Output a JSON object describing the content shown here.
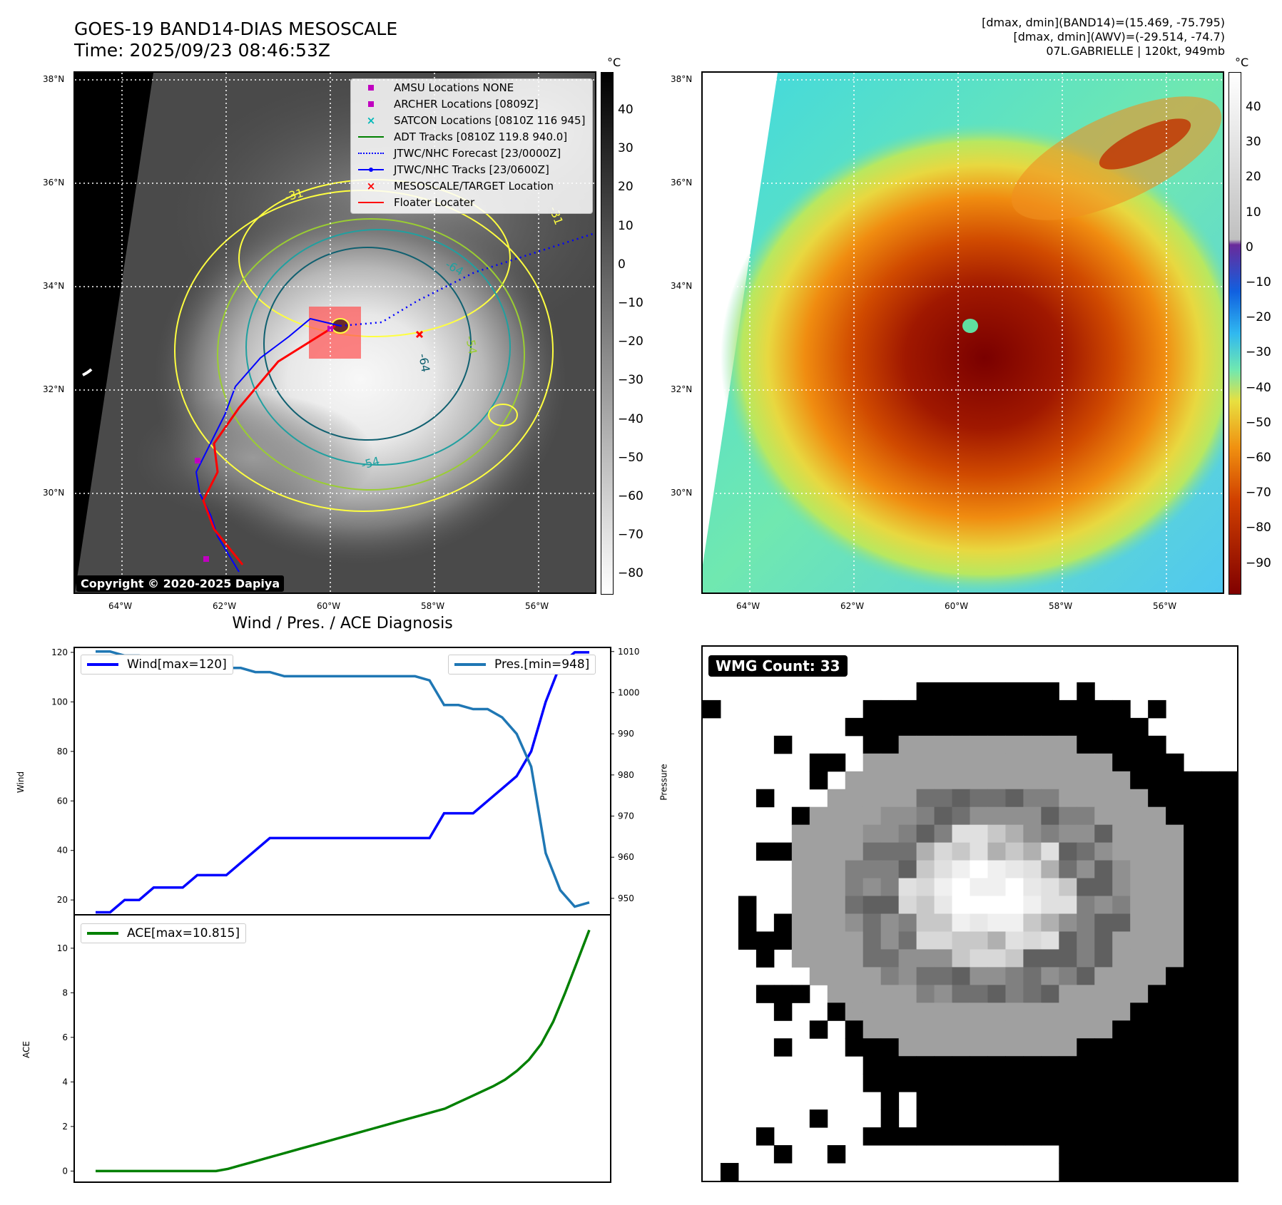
{
  "header": {
    "title_line1": "GOES-19 BAND14-DIAS MESOSCALE",
    "title_line2": "Time: 2025/09/23 08:46:53Z",
    "stats_line1": "[dmax, dmin](BAND14)=(15.469, -75.795)",
    "stats_line2": "[dmax, dmin](AWV)=(-29.514, -74.7)",
    "stats_line3": "07L.GABRIELLE | 120kt, 949mb"
  },
  "map_left": {
    "lat_labels": [
      "38°N",
      "36°N",
      "34°N",
      "32°N",
      "30°N"
    ],
    "lon_labels": [
      "64°W",
      "62°W",
      "60°W",
      "58°W",
      "56°W"
    ],
    "colorbar_unit": "°C",
    "colorbar_ticks": [
      "40",
      "30",
      "20",
      "10",
      "0",
      "−10",
      "−20",
      "−30",
      "−40",
      "−50",
      "−60",
      "−70",
      "−80"
    ],
    "contour_labels": [
      "-31",
      "-64",
      "-54",
      "-64",
      "-31",
      "-54"
    ],
    "copyright": "Copyright © 2020-2025 Dapiya",
    "legend": [
      {
        "label": "AMSU Locations NONE",
        "color": "#c000c0",
        "marker": "square"
      },
      {
        "label": "ARCHER Locations [0809Z]",
        "color": "#c000c0",
        "marker": "square"
      },
      {
        "label": "SATCON Locations [0810Z 116 945]",
        "color": "#00b8b8",
        "marker": "x"
      },
      {
        "label": "ADT Tracks [0810Z 119.8 940.0]",
        "color": "#008000",
        "marker": "line"
      },
      {
        "label": "JTWC/NHC Forecast [23/0000Z]",
        "color": "#0000ff",
        "marker": "dotted"
      },
      {
        "label": "JTWC/NHC Tracks [23/0600Z]",
        "color": "#0000ff",
        "marker": "line-dot"
      },
      {
        "label": "MESOSCALE/TARGET Location",
        "color": "#ff0000",
        "marker": "x"
      },
      {
        "label": "Floater Locater",
        "color": "#ff0000",
        "marker": "line"
      }
    ]
  },
  "map_right": {
    "lat_labels": [
      "38°N",
      "36°N",
      "34°N",
      "32°N",
      "30°N"
    ],
    "lon_labels": [
      "64°W",
      "62°W",
      "60°W",
      "58°W",
      "56°W"
    ],
    "colorbar_unit": "°C",
    "colorbar_ticks": [
      "40",
      "30",
      "20",
      "10",
      "0",
      "−10",
      "−20",
      "−30",
      "−40",
      "−50",
      "−60",
      "−70",
      "−80",
      "−90"
    ]
  },
  "wmg": {
    "badge": "WMG Count: 33"
  },
  "chart_data": [
    {
      "type": "line",
      "title": "Wind / Pres. / ACE Diagnosis",
      "ylabel": "Wind",
      "ylabel_right": "Pressure",
      "ylim": [
        14,
        122
      ],
      "ylim_right": [
        946,
        1011
      ],
      "yticks": [
        20,
        40,
        60,
        80,
        100,
        120
      ],
      "yticks_right": [
        950,
        960,
        970,
        980,
        990,
        1000,
        1010
      ],
      "series": [
        {
          "name": "Wind[max=120]",
          "axis": "left",
          "color": "#0000ff",
          "values": [
            15,
            15,
            20,
            20,
            25,
            25,
            25,
            30,
            30,
            30,
            35,
            40,
            45,
            45,
            45,
            45,
            45,
            45,
            45,
            45,
            45,
            45,
            45,
            45,
            55,
            55,
            55,
            60,
            65,
            70,
            80,
            100,
            115,
            120,
            120
          ]
        },
        {
          "name": "Pres.[min=948]",
          "axis": "right",
          "color": "#1f77b4",
          "values": [
            1010,
            1010,
            1009,
            1009,
            1008,
            1008,
            1007,
            1007,
            1006,
            1006,
            1006,
            1005,
            1005,
            1004,
            1004,
            1004,
            1004,
            1004,
            1004,
            1004,
            1004,
            1004,
            1004,
            1003,
            997,
            997,
            996,
            996,
            994,
            990,
            982,
            961,
            952,
            948,
            949
          ]
        }
      ]
    },
    {
      "type": "line",
      "ylabel": "ACE",
      "ylim": [
        -0.5,
        11.5
      ],
      "yticks": [
        0,
        2,
        4,
        6,
        8,
        10
      ],
      "series": [
        {
          "name": "ACE[max=10.815]",
          "color": "#008000",
          "values": [
            0,
            0,
            0,
            0,
            0,
            0,
            0,
            0,
            0,
            0,
            0,
            0.1,
            0.25,
            0.4,
            0.55,
            0.7,
            0.85,
            1.0,
            1.15,
            1.3,
            1.45,
            1.6,
            1.75,
            1.9,
            2.05,
            2.2,
            2.35,
            2.5,
            2.65,
            2.8,
            3.05,
            3.3,
            3.55,
            3.8,
            4.1,
            4.5,
            5.0,
            5.7,
            6.7,
            8.0,
            9.4,
            10.815
          ]
        }
      ]
    }
  ]
}
